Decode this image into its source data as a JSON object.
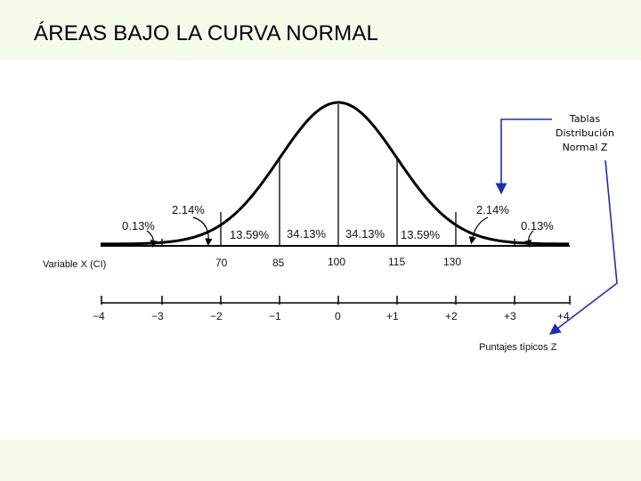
{
  "header": {
    "title": "ÁREAS BAJO LA CURVA NORMAL"
  },
  "diagram": {
    "tables_note": [
      "Tablas",
      "Distribución",
      "Normal Z"
    ],
    "variable_label": "Variable X (CI)",
    "x_values": [
      "70",
      "85",
      "100",
      "115",
      "130"
    ],
    "z_ticks": [
      "−4",
      "−3",
      "−2",
      "−1",
      "0",
      "+1",
      "+2",
      "+3",
      "+4"
    ],
    "z_label": "Puntajes típicos Z",
    "areas": {
      "tail_left": "0.13%",
      "band2_left": "2.14%",
      "band1_left": "13.59%",
      "center_left": "34.13%",
      "center_right": "34.13%",
      "band1_right": "13.59%",
      "band2_right": "2.14%",
      "tail_right": "0.13%"
    },
    "colors": {
      "curve": "#000000",
      "arrow": "#1f2fb5"
    }
  }
}
